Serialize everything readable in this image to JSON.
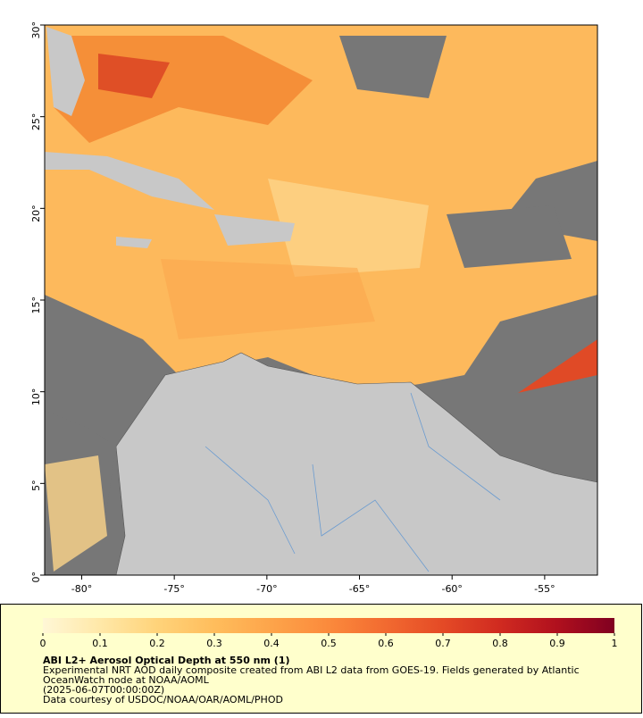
{
  "map": {
    "xlim": [
      -82,
      -52.15
    ],
    "ylim": [
      0,
      30
    ],
    "xticks": [
      {
        "value": -80,
        "label": "-80°"
      },
      {
        "value": -75,
        "label": "-75°"
      },
      {
        "value": -70,
        "label": "-70°"
      },
      {
        "value": -65,
        "label": "-65°"
      },
      {
        "value": -60,
        "label": "-60°"
      },
      {
        "value": -55,
        "label": "-55°"
      }
    ],
    "yticks": [
      {
        "value": 0,
        "label": "0°"
      },
      {
        "value": 5,
        "label": "5°"
      },
      {
        "value": 10,
        "label": "10°"
      },
      {
        "value": 15,
        "label": "15°"
      },
      {
        "value": 20,
        "label": "20°"
      },
      {
        "value": 25,
        "label": "25°"
      },
      {
        "value": 30,
        "label": "30°"
      }
    ]
  },
  "colorbar": {
    "lim": [
      0,
      1
    ],
    "ticks": [
      0,
      0.1,
      0.2,
      0.3,
      0.4,
      0.5,
      0.6,
      0.7,
      0.8,
      0.9,
      1
    ],
    "colors": [
      "#fff7d6",
      "#ffe8a8",
      "#ffd37a",
      "#ffbd5c",
      "#fda44a",
      "#fb8a3c",
      "#f26a30",
      "#e44a26",
      "#d02a20",
      "#b0101e",
      "#800020"
    ]
  },
  "caption": {
    "title": "ABI L2+ Aerosol Optical Depth at 550 nm (1)",
    "lines": [
      "Experimental NRT AOD daily composite created from ABI L2 data from GOES-19. Fields generated by Atlantic",
      "OceanWatch node at NOAA/AOML",
      "(2025-06-07T00:00:00Z)",
      "Data courtesy of USDOC/NOAA/OAR/AOML/PHOD"
    ]
  }
}
